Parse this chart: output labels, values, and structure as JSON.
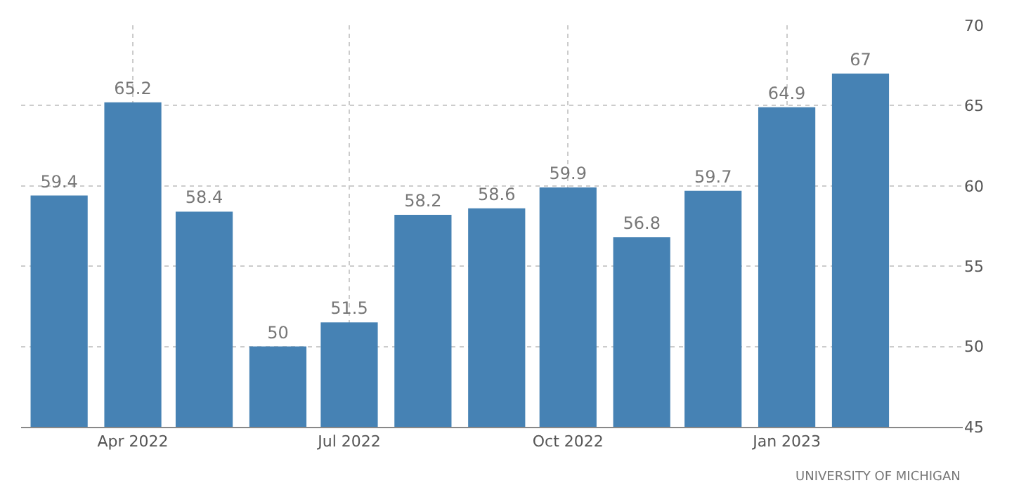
{
  "chart_data": {
    "type": "bar",
    "x": [
      "2022-03",
      "2022-04",
      "2022-05",
      "2022-06",
      "2022-07",
      "2022-08",
      "2022-09",
      "2022-10",
      "2022-11",
      "2022-12",
      "2023-01",
      "2023-02"
    ],
    "values": [
      59.4,
      65.2,
      58.4,
      50,
      51.5,
      58.2,
      58.6,
      59.9,
      56.8,
      59.7,
      64.9,
      67
    ],
    "color": "#4682b4",
    "data_labels": true,
    "xlim": [
      "2022-02-13",
      "2023-03-16"
    ],
    "xticks": [
      {
        "value": "2022-04",
        "label": "Apr 2022"
      },
      {
        "value": "2022-07",
        "label": "Jul 2022"
      },
      {
        "value": "2022-10",
        "label": "Oct 2022"
      },
      {
        "value": "2023-01",
        "label": "Jan 2023"
      }
    ],
    "ylim": [
      45,
      70
    ],
    "yticks": [
      45,
      50,
      55,
      60,
      65,
      70
    ],
    "grid": true,
    "annotations": [
      "UNIVERSITY OF MICHIGAN"
    ]
  }
}
